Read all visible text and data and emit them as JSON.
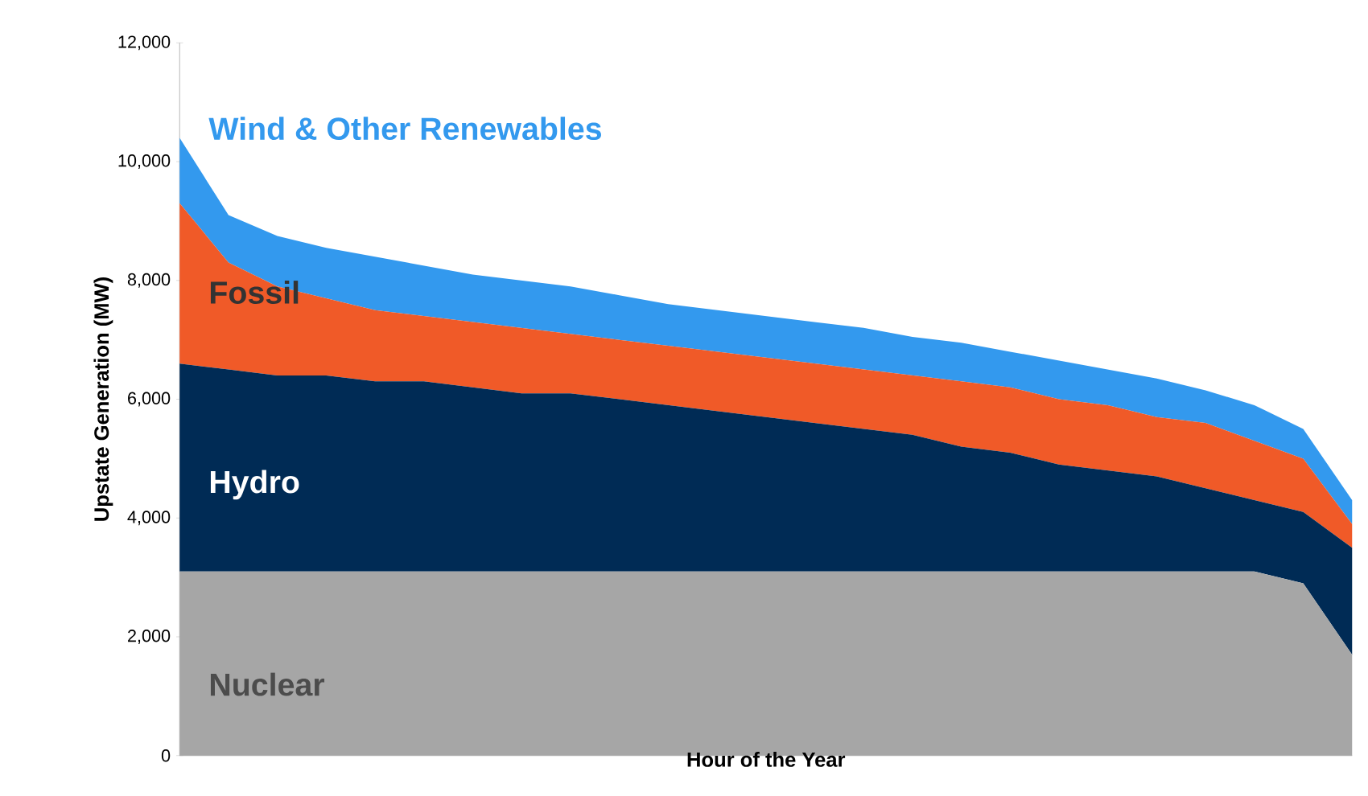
{
  "chart_data": {
    "type": "area",
    "stacked": true,
    "xlabel": "Hour of the Year",
    "ylabel": "Upstate Generation (MW)",
    "categories": [
      null,
      null,
      null,
      null,
      null,
      null,
      null,
      null,
      null,
      null,
      null,
      null,
      null,
      null,
      null,
      null,
      null,
      null,
      null,
      null,
      null,
      null,
      null,
      null,
      null
    ],
    "ylim": [
      0,
      12000
    ],
    "yticks": [
      {
        "value": 0,
        "label": "0"
      },
      {
        "value": 2000,
        "label": "2,000"
      },
      {
        "value": 4000,
        "label": "4,000"
      },
      {
        "value": 6000,
        "label": "6,000"
      },
      {
        "value": 8000,
        "label": "8,000"
      },
      {
        "value": 10000,
        "label": "10,000"
      },
      {
        "value": 12000,
        "label": "12,000"
      }
    ],
    "series": [
      {
        "name": "Nuclear",
        "color": "#a6a6a6",
        "values": [
          3100,
          3100,
          3100,
          3100,
          3100,
          3100,
          3100,
          3100,
          3100,
          3100,
          3100,
          3100,
          3100,
          3100,
          3100,
          3100,
          3100,
          3100,
          3100,
          3100,
          3100,
          3100,
          3100,
          2900,
          1700
        ]
      },
      {
        "name": "Hydro",
        "color": "#002b55",
        "values": [
          3500,
          3400,
          3300,
          3300,
          3200,
          3200,
          3100,
          3000,
          3000,
          2900,
          2800,
          2700,
          2600,
          2500,
          2400,
          2300,
          2100,
          2000,
          1800,
          1700,
          1600,
          1400,
          1200,
          1200,
          1800
        ]
      },
      {
        "name": "Fossil",
        "color": "#f05a28",
        "values": [
          2700,
          1800,
          1500,
          1300,
          1200,
          1100,
          1100,
          1100,
          1000,
          1000,
          1000,
          1000,
          1000,
          1000,
          1000,
          1000,
          1100,
          1100,
          1100,
          1100,
          1000,
          1100,
          1000,
          900,
          400
        ]
      },
      {
        "name": "Wind & Other Renewables",
        "color": "#3399ee",
        "values": [
          1100,
          800,
          850,
          850,
          900,
          850,
          800,
          800,
          800,
          750,
          700,
          700,
          700,
          700,
          700,
          650,
          650,
          600,
          650,
          600,
          650,
          550,
          600,
          500,
          400
        ]
      }
    ]
  }
}
